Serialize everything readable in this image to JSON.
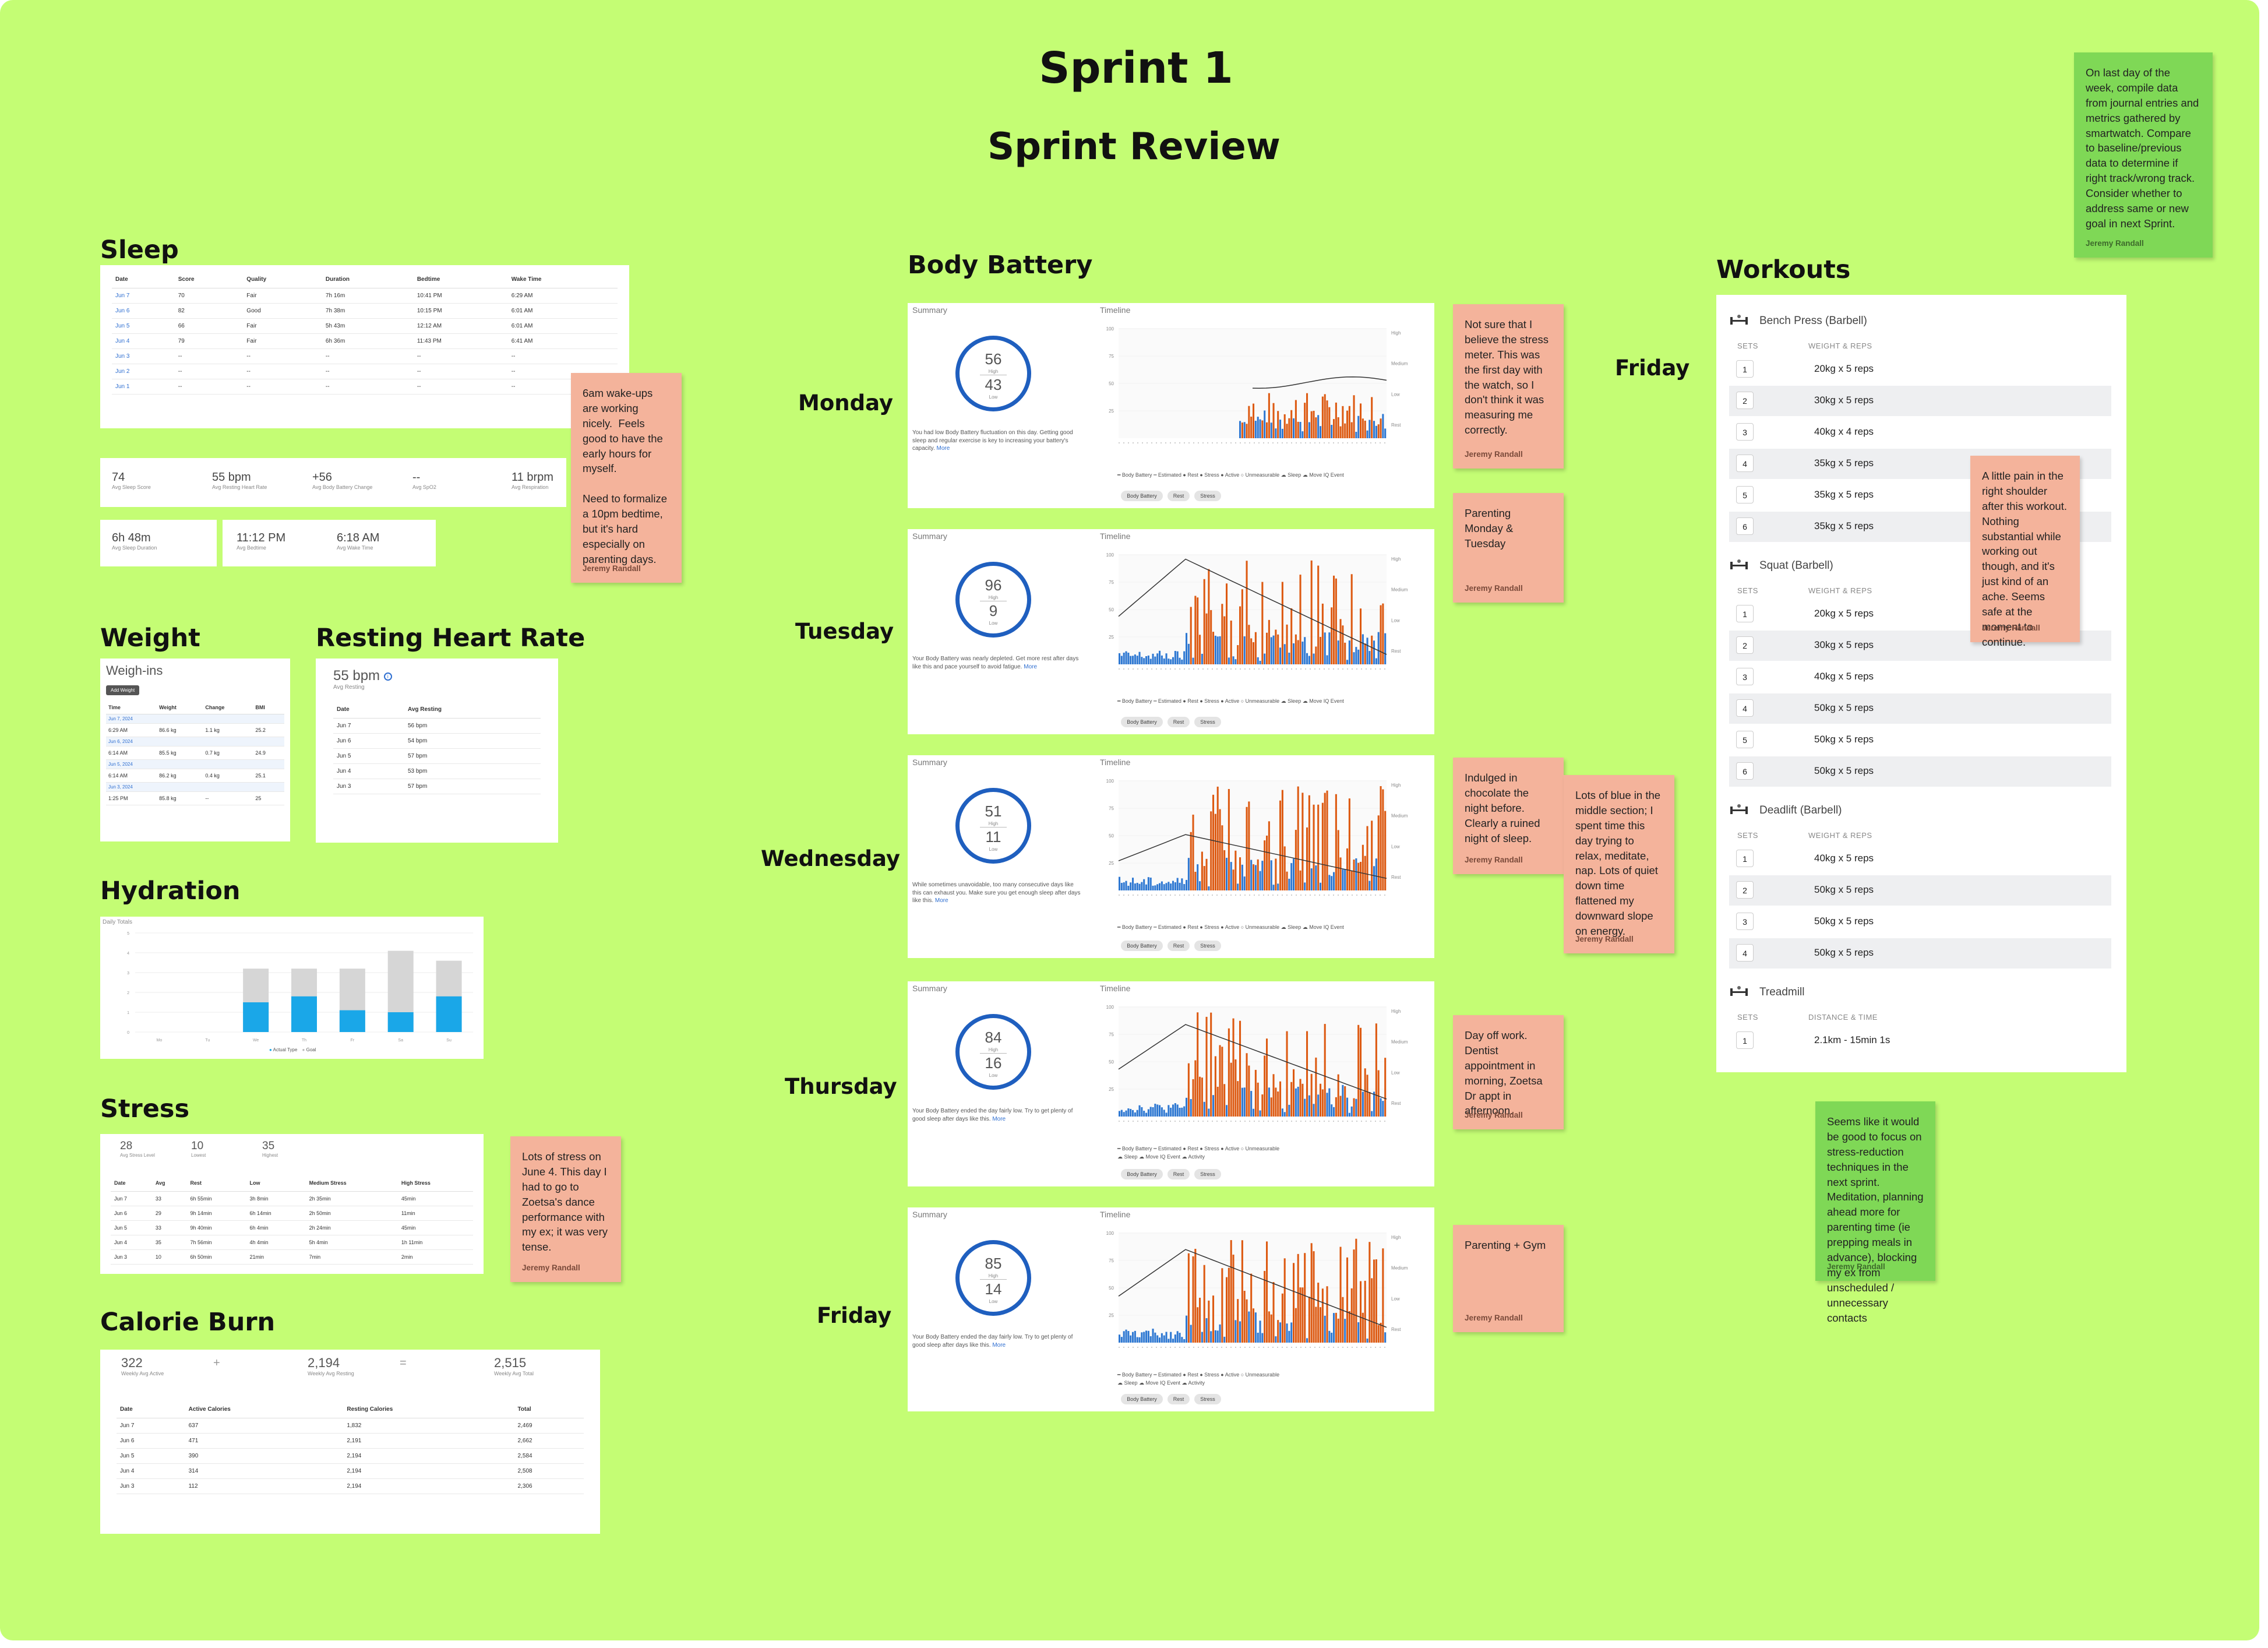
{
  "titles": {
    "main": "Sprint 1",
    "sub": "Sprint Review"
  },
  "sections": {
    "sleep": "Sleep",
    "weight": "Weight",
    "rhr": "Resting Heart Rate",
    "hydration": "Hydration",
    "stress": "Stress",
    "calorie": "Calorie Burn",
    "body_battery": "Body Battery",
    "workouts": "Workouts"
  },
  "days": {
    "monday": "Monday",
    "tuesday": "Tuesday",
    "wednesday": "Wednesday",
    "thursday": "Thursday",
    "friday": "Friday",
    "friday_label": "Friday"
  },
  "sleep": {
    "headers": [
      "Date",
      "Score",
      "Quality",
      "Duration",
      "Bedtime",
      "Wake Time"
    ],
    "rows": [
      [
        "Jun 7",
        "70",
        "Fair",
        "7h 16m",
        "10:41 PM",
        "6:29 AM"
      ],
      [
        "Jun 6",
        "82",
        "Good",
        "7h 38m",
        "10:15 PM",
        "6:01 AM"
      ],
      [
        "Jun 5",
        "66",
        "Fair",
        "5h 43m",
        "12:12 AM",
        "6:01 AM"
      ],
      [
        "Jun 4",
        "79",
        "Fair",
        "6h 36m",
        "11:43 PM",
        "6:41 AM"
      ],
      [
        "Jun 3",
        "--",
        "--",
        "--",
        "--",
        "--"
      ],
      [
        "Jun 2",
        "--",
        "--",
        "--",
        "--",
        "--"
      ],
      [
        "Jun 1",
        "--",
        "--",
        "--",
        "--",
        "--"
      ]
    ],
    "stats": [
      {
        "value": "74",
        "label": "Avg Sleep Score"
      },
      {
        "value": "55 bpm",
        "label": "Avg Resting Heart Rate"
      },
      {
        "value": "+56",
        "label": "Avg Body Battery Change"
      },
      {
        "value": "--",
        "label": "Avg SpO2"
      },
      {
        "value": "11 brpm",
        "label": "Avg Respiration"
      }
    ],
    "duration": {
      "value": "6h 48m",
      "label": "Avg Sleep Duration"
    },
    "bedtime": {
      "value": "11:12 PM",
      "label": "Avg Bedtime"
    },
    "waketime": {
      "value": "6:18 AM",
      "label": "Avg Wake Time"
    }
  },
  "weight": {
    "title": "Weigh-ins",
    "add_button": "Add Weight",
    "headers": [
      "Time",
      "Weight",
      "Change",
      "BMI"
    ],
    "rows": [
      {
        "date": "Jun 7, 2024"
      },
      {
        "time": "6:29 AM",
        "weight": "86.6 kg",
        "change": "1.1 kg",
        "bmi": "25.2"
      },
      {
        "date": "Jun 6, 2024"
      },
      {
        "time": "6:14 AM",
        "weight": "85.5 kg",
        "change": "0.7 kg",
        "bmi": "24.9"
      },
      {
        "date": "Jun 5, 2024"
      },
      {
        "time": "6:14 AM",
        "weight": "86.2 kg",
        "change": "0.4 kg",
        "bmi": "25.1"
      },
      {
        "date": "Jun 3, 2024"
      },
      {
        "time": "1:25 PM",
        "weight": "85.8 kg",
        "change": "--",
        "bmi": "25"
      }
    ]
  },
  "rhr": {
    "value": "55 bpm",
    "label": "Avg Resting",
    "headers": [
      "Date",
      "Avg Resting"
    ],
    "rows": [
      [
        "Jun 7",
        "56 bpm"
      ],
      [
        "Jun 6",
        "54 bpm"
      ],
      [
        "Jun 5",
        "57 bpm"
      ],
      [
        "Jun 4",
        "53 bpm"
      ],
      [
        "Jun 3",
        "57 bpm"
      ]
    ]
  },
  "hydration": {
    "title": "Daily Totals",
    "legend": [
      "Actual Type",
      "Goal"
    ],
    "colors": {
      "actual": "#1aa7e8",
      "goal": "#d6d6d6"
    },
    "chart_data": {
      "type": "bar",
      "categories": [
        "Mo",
        "Tu",
        "We",
        "Th",
        "Fr",
        "Sa",
        "Su"
      ],
      "series": [
        {
          "name": "Actual Type",
          "values": [
            0,
            0,
            1.5,
            1.8,
            1.1,
            1.0,
            1.8
          ]
        },
        {
          "name": "Goal",
          "values": [
            0,
            0,
            3.2,
            3.2,
            3.2,
            4.1,
            3.6
          ]
        }
      ],
      "ylim": [
        0,
        5
      ]
    }
  },
  "stress": {
    "stats": [
      {
        "value": "28",
        "label": "Avg Stress Level"
      },
      {
        "value": "10",
        "label": "Lowest"
      },
      {
        "value": "35",
        "label": "Highest"
      }
    ],
    "headers": [
      "Date",
      "Avg",
      "Rest",
      "Low",
      "Medium Stress",
      "High Stress"
    ],
    "rows": [
      [
        "Jun 7",
        "33",
        "6h 55min",
        "3h 8min",
        "2h 35min",
        "45min"
      ],
      [
        "Jun 6",
        "29",
        "9h 14min",
        "6h 14min",
        "2h 50min",
        "11min"
      ],
      [
        "Jun 5",
        "33",
        "9h 40min",
        "6h 4min",
        "2h 24min",
        "45min"
      ],
      [
        "Jun 4",
        "35",
        "7h 56min",
        "4h 4min",
        "5h 4min",
        "1h 11min"
      ],
      [
        "Jun 3",
        "10",
        "6h 50min",
        "21min",
        "7min",
        "2min"
      ]
    ]
  },
  "calorie": {
    "active": {
      "value": "322",
      "label": "Weekly Avg Active"
    },
    "plus": "+",
    "resting": {
      "value": "2,194",
      "label": "Weekly Avg Resting"
    },
    "equals": "=",
    "total": {
      "value": "2,515",
      "label": "Weekly Avg Total"
    },
    "headers": [
      "Date",
      "Active Calories",
      "Resting Calories",
      "Total"
    ],
    "rows": [
      [
        "Jun 7",
        "637",
        "1,832",
        "2,469"
      ],
      [
        "Jun 6",
        "471",
        "2,191",
        "2,662"
      ],
      [
        "Jun 5",
        "390",
        "2,194",
        "2,584"
      ],
      [
        "Jun 4",
        "314",
        "2,194",
        "2,508"
      ],
      [
        "Jun 3",
        "112",
        "2,194",
        "2,306"
      ]
    ]
  },
  "bb_common": {
    "summary": "Summary",
    "timeline": "Timeline",
    "more": "More",
    "y_ticks": [
      "100",
      "75",
      "50",
      "25"
    ],
    "levels": [
      "High",
      "Medium",
      "Low",
      "Rest"
    ],
    "legend_a": "━ Body Battery   ┅ Estimated   ● Rest   ● Stress   ● Active   ○ Unmeasurable   ☁ Sleep   ☁ Move IQ Event",
    "legend_b1": "━ Body Battery   ┅ Estimated   ● Rest   ● Stress   ● Active   ○ Unmeasurable",
    "legend_b2": "☁ Sleep   ☁ Move IQ Event   ☁ Activity",
    "pills": [
      "Body Battery",
      "Rest",
      "Stress"
    ],
    "high_label": "High",
    "low_label": "Low",
    "colors": {
      "rest": "#2e78d2",
      "stress": "#dd5a12",
      "line": "#333333"
    }
  },
  "bb_cards": [
    {
      "key": "monday",
      "high": "56",
      "low": "43",
      "desc": "You had low Body Battery fluctuation on this day. Getting good sleep and regular exercise is key to increasing your battery's capacity."
    },
    {
      "key": "tuesday",
      "high": "96",
      "low": "9",
      "desc": "Your Body Battery was nearly depleted. Get more rest after days like this and pace yourself to avoid fatigue."
    },
    {
      "key": "wednesday",
      "high": "51",
      "low": "11",
      "desc": "While sometimes unavoidable, too many consecutive days like this can exhaust you. Make sure you get enough sleep after days like this."
    },
    {
      "key": "thursday",
      "high": "84",
      "low": "16",
      "desc": "Your Body Battery ended the day fairly low. Try to get plenty of good sleep after days like this."
    },
    {
      "key": "friday",
      "high": "85",
      "low": "14",
      "desc": "Your Body Battery ended the day fairly low. Try to get plenty of good sleep after days like this."
    }
  ],
  "stickies": {
    "sleep_note": "6am wake-ups are working nicely.  Feels good to have the early hours for myself.\n\nNeed to formalize a 10pm bedtime, but it's hard especially on parenting days.",
    "stress_note": "Lots of stress on June 4.  This day I had to go to Zoetsa's dance performance with my ex; it was very tense.",
    "monday_note": "Not sure that I believe the stress meter.  This was the first day with the watch, so I don't think it was measuring me correctly.",
    "tuesday_note": "Parenting Monday & Tuesday",
    "wednesday_note": "Indulged in chocolate the night before.  Clearly a ruined night of sleep.",
    "wednesday_note2": "Lots of blue in the middle section; I spent time this day trying to relax, meditate, nap.  Lots of quiet down time flattened my downward slope on energy.",
    "thursday_note": "Day off work.  Dentist appointment in morning, Zoetsa Dr appt in afternoon.",
    "friday_note": "Parenting + Gym",
    "shoulder_note": "A little pain in the right shoulder after this workout.  Nothing substantial while working out though, and it's just kind of an ache.  Seems safe at the moment to continue.",
    "instruction_note": "On last day of the week, compile data from journal entries and metrics gathered by smartwatch.  Compare to baseline/previous data to determine if right track/wrong track.  Consider whether to address same or new goal in next Sprint.",
    "focus_note": "Seems like it would be good to focus on stress-reduction techniques in the next sprint.  Meditation, planning ahead more for parenting time (ie prepping meals in advance), blocking my ex from unscheduled / unnecessary contacts",
    "author": "Jeremy Randall"
  },
  "workouts": {
    "sets_header": "SETS",
    "weight_header": "WEIGHT & REPS",
    "distance_header": "DISTANCE & TIME",
    "exercises": [
      {
        "name": "Bench Press (Barbell)",
        "icon": "bench-press-icon",
        "sets": [
          "20kg x 5 reps",
          "30kg x 5 reps",
          "40kg x 4 reps",
          "35kg x 5 reps",
          "35kg x 5 reps",
          "35kg x 5 reps"
        ]
      },
      {
        "name": "Squat (Barbell)",
        "icon": "squat-icon",
        "sets": [
          "20kg x 5 reps",
          "30kg x 5 reps",
          "40kg x 5 reps",
          "50kg x 5 reps",
          "50kg x 5 reps",
          "50kg x 5 reps"
        ]
      },
      {
        "name": "Deadlift (Barbell)",
        "icon": "deadlift-icon",
        "sets": [
          "40kg x 5 reps",
          "50kg x 5 reps",
          "50kg x 5 reps",
          "50kg x 5 reps"
        ]
      },
      {
        "name": "Treadmill",
        "icon": "treadmill-icon",
        "distance": true,
        "sets": [
          "2.1km - 15min 1s"
        ]
      }
    ]
  }
}
